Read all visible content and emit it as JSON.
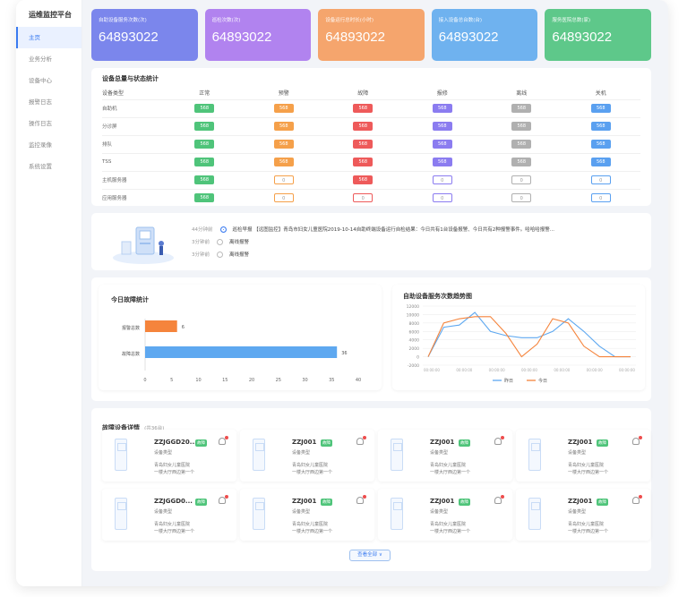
{
  "sidebar": {
    "brand": "运维监控平台",
    "items": [
      {
        "label": "主页",
        "active": true
      },
      {
        "label": "业务分析"
      },
      {
        "label": "设备中心"
      },
      {
        "label": "报警日志"
      },
      {
        "label": "操作日志"
      },
      {
        "label": "监控录像"
      },
      {
        "label": "系统设置"
      }
    ]
  },
  "stats": [
    {
      "label": "自助设备服务次数(次)",
      "value": "64893022",
      "color": "#7b86ec"
    },
    {
      "label": "巡检次数(次)",
      "value": "64893022",
      "color": "#b183ef"
    },
    {
      "label": "设备运行总时长(小时)",
      "value": "64893022",
      "color": "#f5a56d"
    },
    {
      "label": "接入设备总台数(台)",
      "value": "64893022",
      "color": "#6fb2ef"
    },
    {
      "label": "服务医院总数(家)",
      "value": "64893022",
      "color": "#5ec88a"
    }
  ],
  "status_table": {
    "title": "设备总量与状态统计",
    "columns": [
      "设备类型",
      "正常",
      "预警",
      "故障",
      "报修",
      "离线",
      "关机"
    ],
    "rows": [
      {
        "name": "自助机",
        "cells": [
          "568",
          "568",
          "568",
          "568",
          "568",
          "568"
        ]
      },
      {
        "name": "分诊屏",
        "cells": [
          "568",
          "568",
          "568",
          "568",
          "568",
          "568"
        ]
      },
      {
        "name": "排队",
        "cells": [
          "568",
          "568",
          "568",
          "568",
          "568",
          "568"
        ]
      },
      {
        "name": "TSS",
        "cells": [
          "568",
          "568",
          "568",
          "568",
          "568",
          "568"
        ]
      },
      {
        "name": "主机服务器",
        "cells": [
          "568",
          "0",
          "568",
          "0",
          "0",
          "0"
        ]
      },
      {
        "name": "应用服务器",
        "cells": [
          "568",
          "0",
          "0",
          "0",
          "0",
          "0"
        ]
      }
    ],
    "colors": [
      "#4fc47a",
      "#f5a04a",
      "#ee5a5a",
      "#8b7cf0",
      "#b0b0b0",
      "#5aa0f0"
    ]
  },
  "notices": [
    {
      "time": "44分钟前",
      "text": "巡检早报 【远图监控】青岛市妇女儿童医院2019-10-14自助终端设备运行自检结果：今日共有1台设备报警、今日共有2种报警事件。哈哈哈报警...",
      "link": "查看详情",
      "checked": true
    },
    {
      "time": "3分钟前",
      "text": "离线报警",
      "link": "查看详情",
      "checked": false
    },
    {
      "time": "3分钟前",
      "text": "离线报警",
      "link": "查看详情",
      "checked": false
    }
  ],
  "fault_chart": {
    "title": "今日故障统计",
    "chart_data": {
      "type": "bar",
      "orientation": "horizontal",
      "categories": [
        "报警总数",
        "故障总数"
      ],
      "values": [
        6,
        36
      ],
      "colors": [
        "#f5843c",
        "#5ea8f0"
      ],
      "xlim": [
        0,
        40
      ],
      "xticks": [
        0,
        5,
        10,
        15,
        20,
        25,
        30,
        35,
        40
      ]
    }
  },
  "trend_chart": {
    "title": "自助设备服务次数趋势图",
    "chart_data": {
      "type": "line",
      "x": [
        "00:00:00",
        "00:00:00",
        "00:00:00",
        "00:00:00",
        "00:00:00",
        "00:00:00",
        "00:00:00",
        "00:00:00",
        "00:00:00",
        "00:00:00",
        "00:00:00",
        "00:00:00",
        "00:00:00",
        "00:00:00"
      ],
      "xticks_shown": [
        "00:00:00",
        "00:00:00",
        "00:00:00",
        "00:00:00",
        "00:00:00",
        "00:00:00",
        "00:00:00"
      ],
      "ylim": [
        -2000,
        12000
      ],
      "yticks": [
        -2000,
        0,
        2000,
        4000,
        6000,
        8000,
        10000,
        12000
      ],
      "series": [
        {
          "name": "昨日",
          "color": "#5ea8f0",
          "values": [
            0,
            7000,
            7500,
            10500,
            6000,
            5000,
            4500,
            4500,
            6000,
            9000,
            6000,
            2500,
            0,
            0
          ]
        },
        {
          "name": "今日",
          "color": "#f5843c",
          "values": [
            0,
            8000,
            9000,
            9500,
            9500,
            5500,
            0,
            3000,
            9000,
            8000,
            2500,
            0,
            0,
            0
          ]
        }
      ]
    }
  },
  "devices": {
    "title": "故障设备详情",
    "count": "(共36台)",
    "items": [
      {
        "id": "ZZJGGD20...",
        "tag": "故障",
        "type": "设备类型",
        "hospital": "青岛妇女儿童医院",
        "location": "一楼大厅西边第一个"
      },
      {
        "id": "ZZJ001",
        "tag": "故障",
        "type": "设备类型",
        "hospital": "青岛妇女儿童医院",
        "location": "一楼大厅西边第一个"
      },
      {
        "id": "ZZJ001",
        "tag": "故障",
        "type": "设备类型",
        "hospital": "青岛妇女儿童医院",
        "location": "一楼大厅西边第一个"
      },
      {
        "id": "ZZJ001",
        "tag": "故障",
        "type": "设备类型",
        "hospital": "青岛妇女儿童医院",
        "location": "一楼大厅西边第一个"
      },
      {
        "id": "ZZJGGD0...",
        "tag": "故障",
        "type": "设备类型",
        "hospital": "青岛妇女儿童医院",
        "location": "一楼大厅西边第一个"
      },
      {
        "id": "ZZJ001",
        "tag": "故障",
        "type": "设备类型",
        "hospital": "青岛妇女儿童医院",
        "location": "一楼大厅西边第一个"
      },
      {
        "id": "ZZJ001",
        "tag": "故障",
        "type": "设备类型",
        "hospital": "青岛妇女儿童医院",
        "location": "一楼大厅西边第一个"
      },
      {
        "id": "ZZJ001",
        "tag": "故障",
        "type": "设备类型",
        "hospital": "青岛妇女儿童医院",
        "location": "一楼大厅西边第一个"
      }
    ],
    "view_all": "查看全部 ∨"
  }
}
